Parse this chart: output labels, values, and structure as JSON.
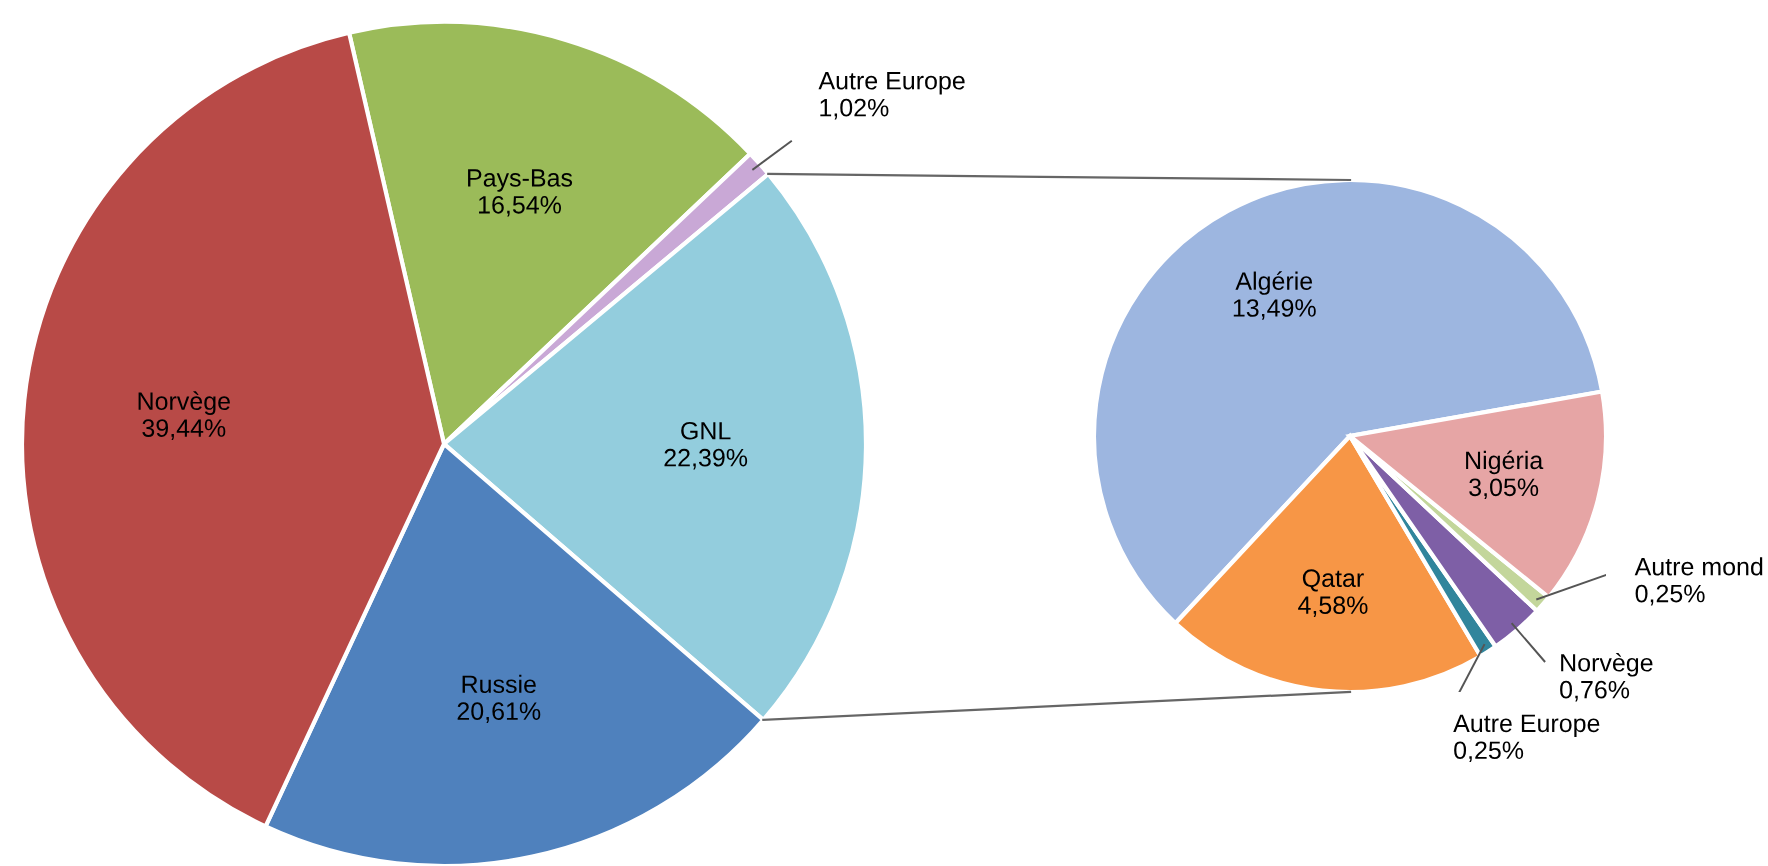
{
  "chart_data": [
    {
      "type": "pie",
      "categories": [
        "Pays-Bas",
        "Autre Europe",
        "GNL",
        "Russie",
        "Norvège"
      ],
      "values": [
        16.54,
        1.02,
        22.39,
        20.61,
        39.44
      ],
      "colors": [
        "#9bbb59",
        "#c9a8d6",
        "#93cddd",
        "#4f81bd",
        "#b84a47"
      ],
      "value_labels": [
        "16,54%",
        "1,02%",
        "22,39%",
        "20,61%",
        "39,44%"
      ]
    },
    {
      "type": "pie",
      "categories": [
        "Algérie",
        "Qatar",
        "Autre Europe",
        "Norvège",
        "Autre mond",
        "Nigéria"
      ],
      "values": [
        13.49,
        4.58,
        0.25,
        0.76,
        0.25,
        3.05
      ],
      "colors": [
        "#9db6e0",
        "#f79646",
        "#31859c",
        "#7e5fa6",
        "#c3d69b",
        "#e6a5a5"
      ],
      "value_labels": [
        "13,49%",
        "4,58%",
        "0,25%",
        "0,76%",
        "0,25%",
        "3,05%"
      ]
    }
  ]
}
